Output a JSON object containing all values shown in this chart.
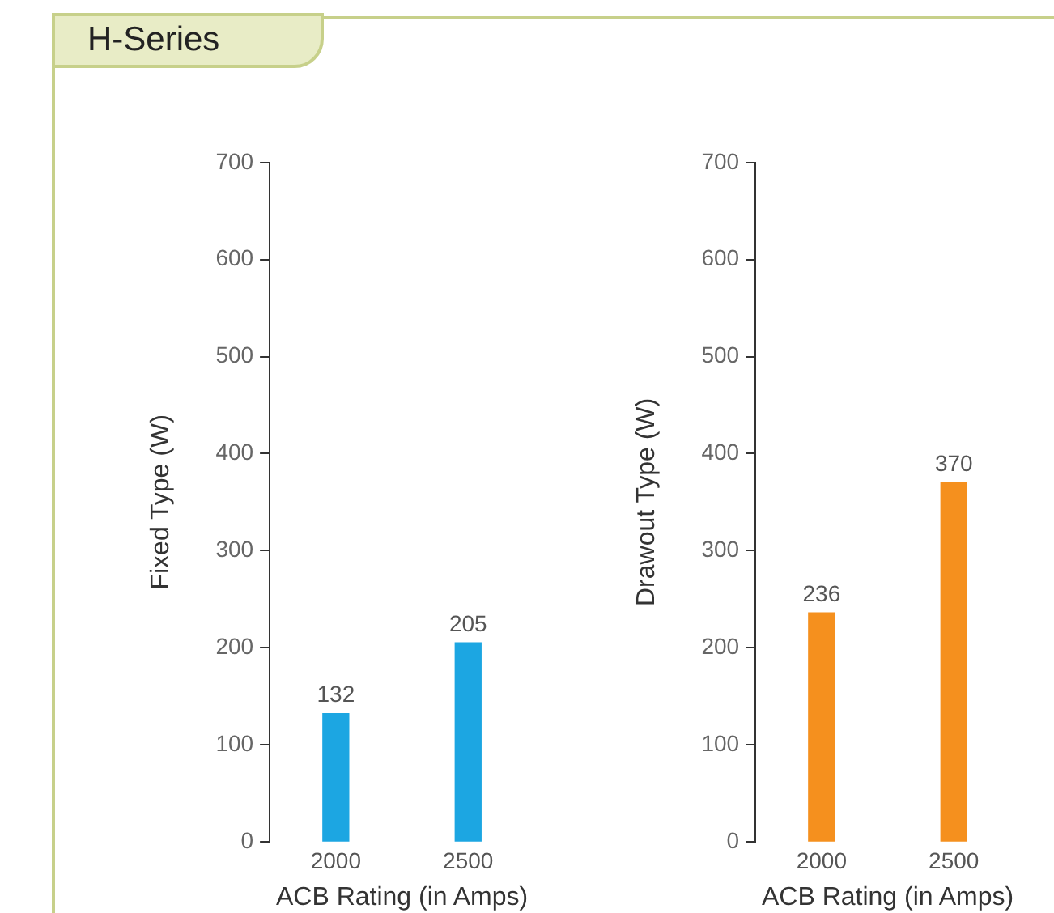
{
  "chart_data": [
    {
      "type": "bar",
      "title": "H-Series",
      "xlabel": "ACB Rating (in Amps)",
      "ylabel": "Fixed Type (W)",
      "categories": [
        "2000",
        "2500"
      ],
      "values": [
        132,
        205
      ],
      "color": "#1ca6e2",
      "ylim": [
        0,
        700
      ],
      "yticks": [
        0,
        100,
        200,
        300,
        400,
        500,
        600,
        700
      ],
      "grid": false,
      "data_labels": true
    },
    {
      "type": "bar",
      "xlabel": "ACB Rating (in Amps)",
      "ylabel": "Drawout Type (W)",
      "categories": [
        "2000",
        "2500"
      ],
      "values": [
        236,
        370
      ],
      "color": "#f5901e",
      "ylim": [
        0,
        700
      ],
      "yticks": [
        0,
        100,
        200,
        300,
        400,
        500,
        600,
        700
      ],
      "grid": false,
      "data_labels": true
    }
  ]
}
